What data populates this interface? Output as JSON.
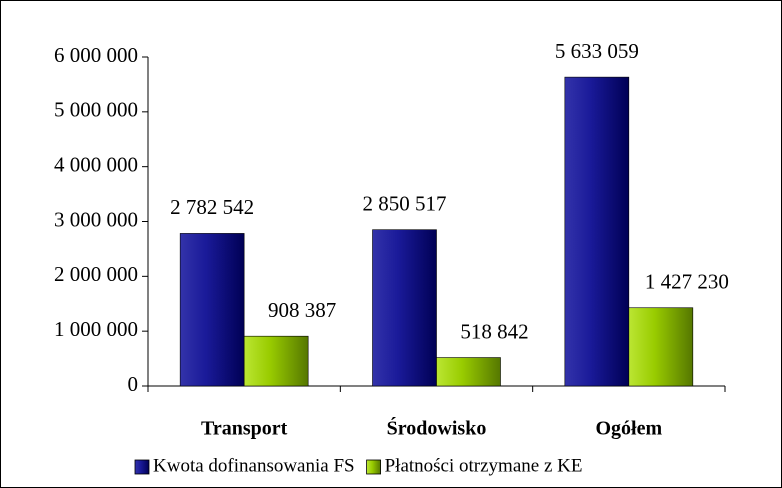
{
  "chart_data": {
    "type": "bar",
    "categories": [
      "Transport",
      "Środowisko",
      "Ogółem"
    ],
    "series": [
      {
        "name": "Kwota dofinansowania FS",
        "color": "#000080",
        "values": [
          2782542,
          2850517,
          5633059
        ],
        "value_labels": [
          "2 782 542",
          "2 850 517",
          "5 633 059"
        ]
      },
      {
        "name": "Płatności otrzymane z KE",
        "color": "#99cc00",
        "values": [
          908387,
          518842,
          1427230
        ],
        "value_labels": [
          "908 387",
          "518 842",
          "1 427 230"
        ]
      }
    ],
    "ylim": [
      0,
      6000000
    ],
    "yticks": [
      {
        "value": 0,
        "label": "0"
      },
      {
        "value": 1000000,
        "label": "1 000 000"
      },
      {
        "value": 2000000,
        "label": "2 000 000"
      },
      {
        "value": 3000000,
        "label": "3 000 000"
      },
      {
        "value": 4000000,
        "label": "4 000 000"
      },
      {
        "value": 5000000,
        "label": "5 000 000"
      },
      {
        "value": 6000000,
        "label": "6 000 000"
      }
    ],
    "legend": "bottom",
    "grid": false
  }
}
